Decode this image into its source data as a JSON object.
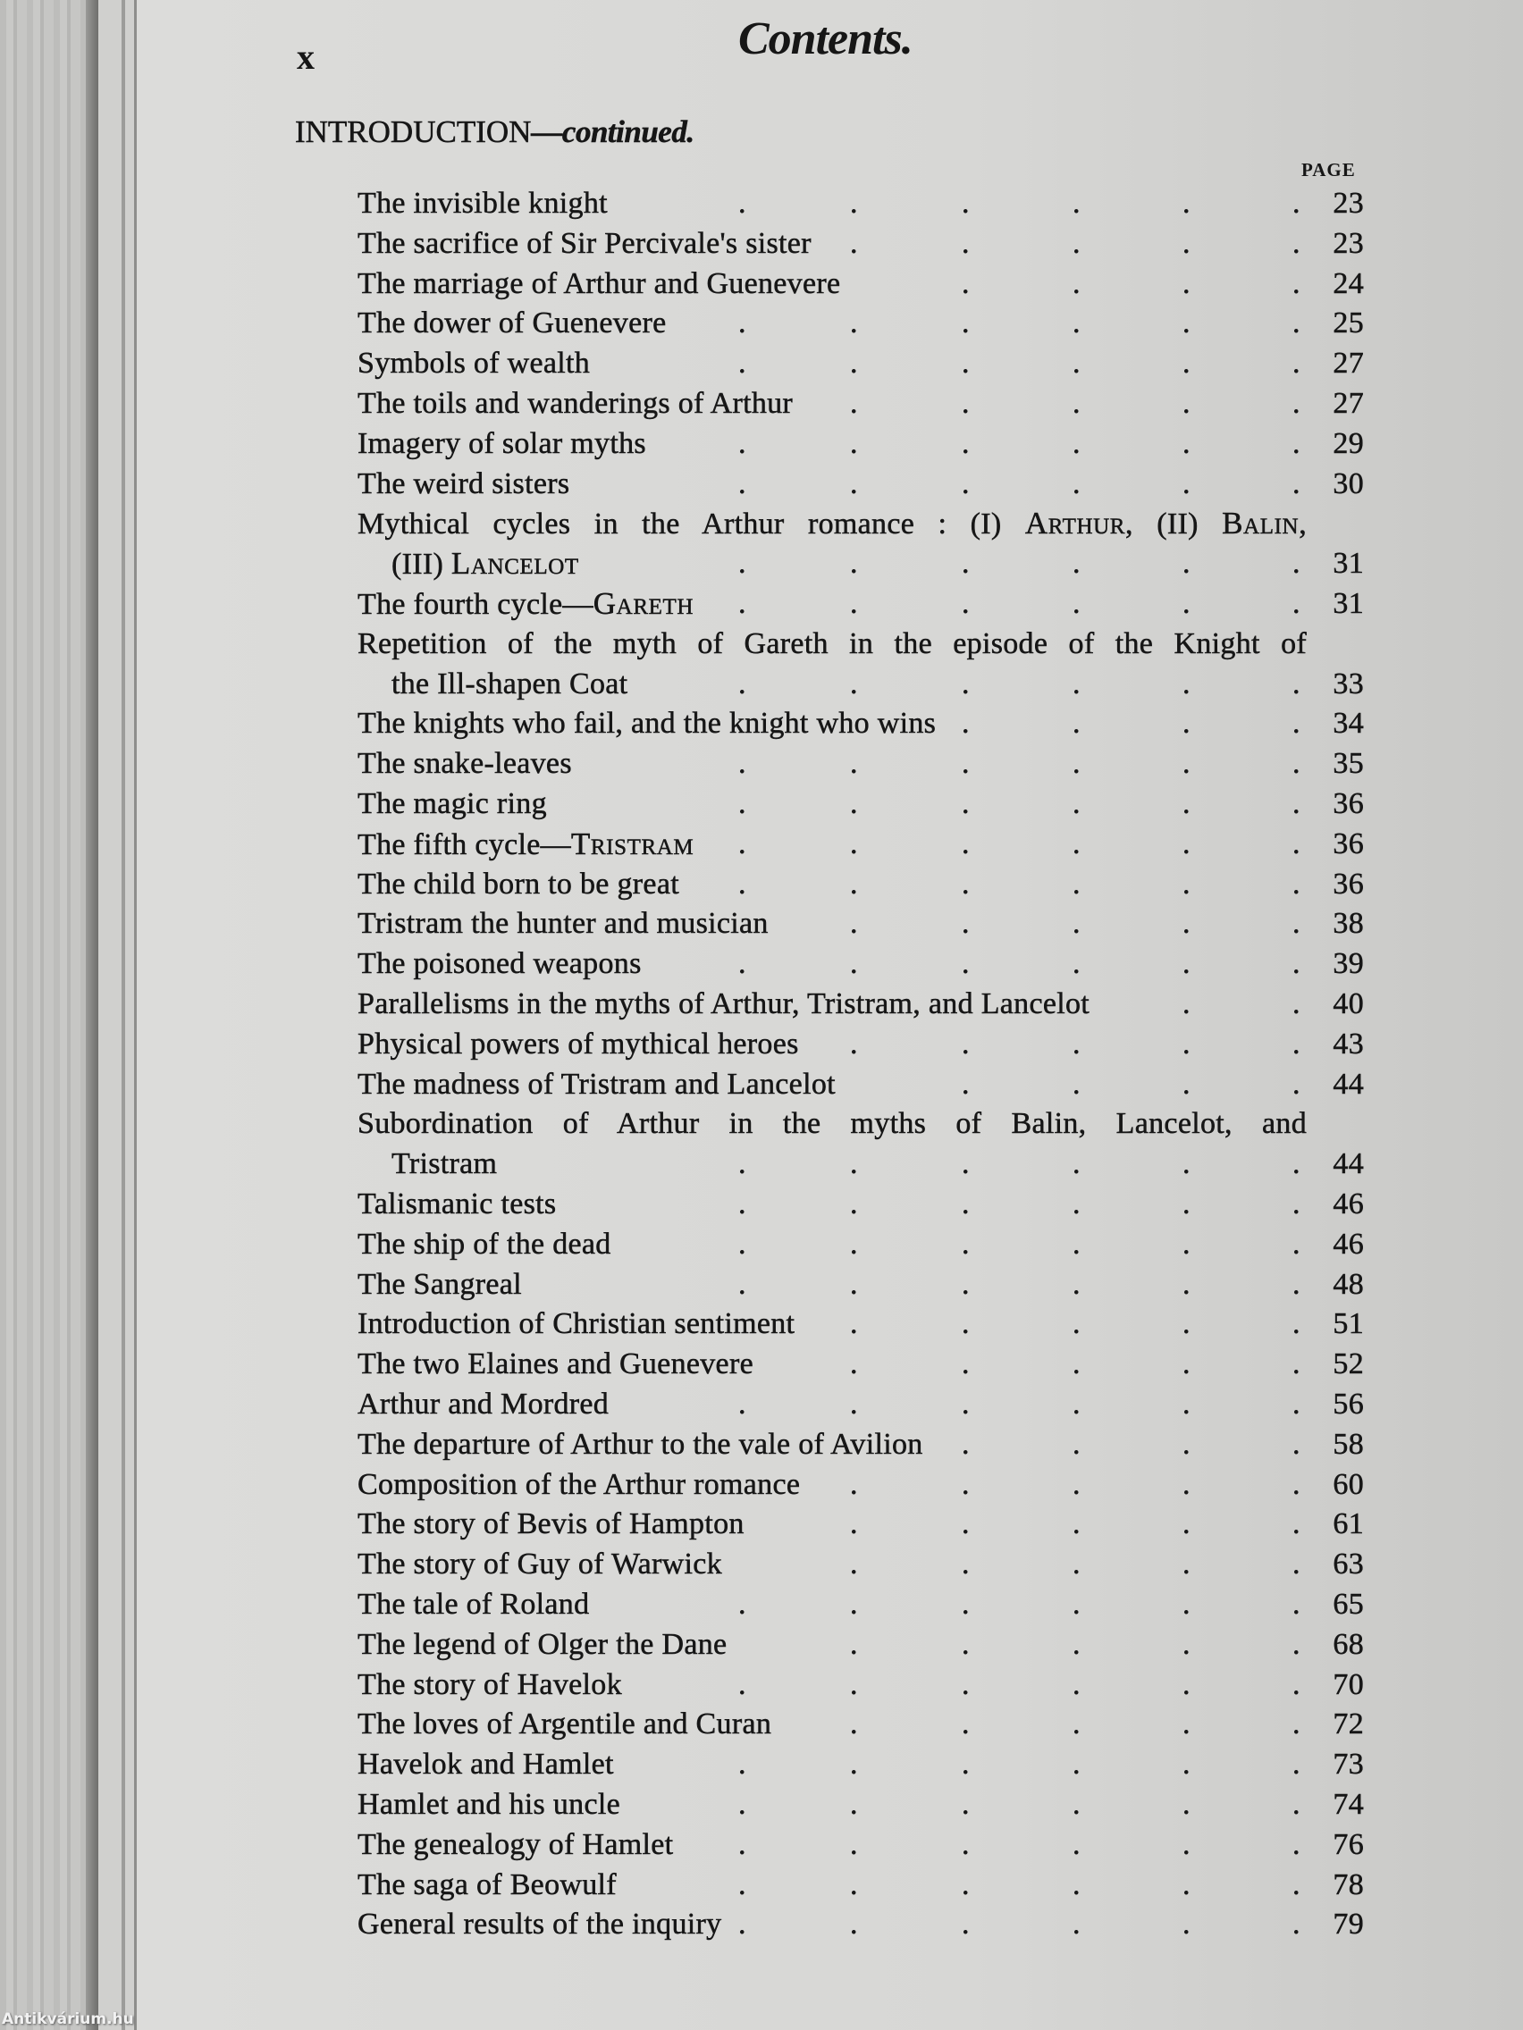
{
  "running_head": {
    "folio": "x",
    "title": "Contents."
  },
  "section": {
    "label": "INTRODUCTION",
    "continued": "—continued."
  },
  "page_column_label": "PAGE",
  "watermark": "Antikvárium.hu",
  "rows": [
    {
      "segs": [
        {
          "t": "The invisible knight"
        }
      ],
      "page": "23"
    },
    {
      "segs": [
        {
          "t": "The sacrifice of Sir Percivale's sister"
        }
      ],
      "page": "23"
    },
    {
      "segs": [
        {
          "t": "The marriage of Arthur and Guenevere"
        }
      ],
      "page": "24"
    },
    {
      "segs": [
        {
          "t": "The dower of Guenevere"
        }
      ],
      "page": "25"
    },
    {
      "segs": [
        {
          "t": "Symbols of wealth"
        }
      ],
      "page": "27"
    },
    {
      "segs": [
        {
          "t": "The toils and wanderings of Arthur"
        }
      ],
      "page": "27"
    },
    {
      "segs": [
        {
          "t": "Imagery of solar myths"
        }
      ],
      "page": "29"
    },
    {
      "segs": [
        {
          "t": "The weird sisters"
        }
      ],
      "page": "30"
    },
    {
      "segs": [
        {
          "t": "Mythical cycles in the Arthur romance : (I) "
        },
        {
          "t": "Arthur",
          "sc": true
        },
        {
          "t": ", (II) "
        },
        {
          "t": "Balin",
          "sc": true
        },
        {
          "t": ","
        }
      ],
      "page": "",
      "justify": true
    },
    {
      "segs": [
        {
          "t": "(III) "
        },
        {
          "t": "Lancelot",
          "sc": true
        }
      ],
      "page": "31",
      "indent": true
    },
    {
      "segs": [
        {
          "t": "The fourth cycle—"
        },
        {
          "t": "Gareth",
          "sc": true
        }
      ],
      "page": "31"
    },
    {
      "segs": [
        {
          "t": "Repetition of the myth of Gareth in the episode of the Knight of"
        }
      ],
      "page": "",
      "justify": true
    },
    {
      "segs": [
        {
          "t": "the Ill-shapen Coat"
        }
      ],
      "page": "33",
      "indent": true
    },
    {
      "segs": [
        {
          "t": "The knights who fail, and the knight who wins"
        }
      ],
      "page": "34"
    },
    {
      "segs": [
        {
          "t": "The snake-leaves"
        }
      ],
      "page": "35"
    },
    {
      "segs": [
        {
          "t": "The magic ring"
        }
      ],
      "page": "36"
    },
    {
      "segs": [
        {
          "t": "The fifth cycle—"
        },
        {
          "t": "Tristram",
          "sc": true
        }
      ],
      "page": "36"
    },
    {
      "segs": [
        {
          "t": "The child born to be great"
        }
      ],
      "page": "36"
    },
    {
      "segs": [
        {
          "t": "Tristram the hunter and musician"
        }
      ],
      "page": "38"
    },
    {
      "segs": [
        {
          "t": "The poisoned weapons"
        }
      ],
      "page": "39"
    },
    {
      "segs": [
        {
          "t": "Parallelisms in the myths of Arthur, Tristram, and Lancelot"
        }
      ],
      "page": "40"
    },
    {
      "segs": [
        {
          "t": "Physical powers of mythical heroes"
        }
      ],
      "page": "43"
    },
    {
      "segs": [
        {
          "t": "The madness of Tristram and Lancelot"
        }
      ],
      "page": "44"
    },
    {
      "segs": [
        {
          "t": "Subordination of Arthur in the myths of Balin, Lancelot, and"
        }
      ],
      "page": "",
      "justify": true
    },
    {
      "segs": [
        {
          "t": "Tristram"
        }
      ],
      "page": "44",
      "indent": true
    },
    {
      "segs": [
        {
          "t": "Talismanic tests"
        }
      ],
      "page": "46"
    },
    {
      "segs": [
        {
          "t": "The ship of the dead"
        }
      ],
      "page": "46"
    },
    {
      "segs": [
        {
          "t": "The Sangreal"
        }
      ],
      "page": "48"
    },
    {
      "segs": [
        {
          "t": "Introduction of Christian sentiment"
        }
      ],
      "page": "51"
    },
    {
      "segs": [
        {
          "t": "The two Elaines and Guenevere"
        }
      ],
      "page": "52"
    },
    {
      "segs": [
        {
          "t": "Arthur and Mordred"
        }
      ],
      "page": "56"
    },
    {
      "segs": [
        {
          "t": "The departure of Arthur to the vale of Avilion"
        }
      ],
      "page": "58"
    },
    {
      "segs": [
        {
          "t": "Composition of the Arthur romance"
        }
      ],
      "page": "60"
    },
    {
      "segs": [
        {
          "t": "The story of Bevis of Hampton"
        }
      ],
      "page": "61"
    },
    {
      "segs": [
        {
          "t": "The story of Guy of Warwick"
        }
      ],
      "page": "63"
    },
    {
      "segs": [
        {
          "t": "The tale of Roland"
        }
      ],
      "page": "65"
    },
    {
      "segs": [
        {
          "t": "The legend of Olger the Dane"
        }
      ],
      "page": "68"
    },
    {
      "segs": [
        {
          "t": "The story of Havelok"
        }
      ],
      "page": "70"
    },
    {
      "segs": [
        {
          "t": "The loves of Argentile and Curan"
        }
      ],
      "page": "72"
    },
    {
      "segs": [
        {
          "t": "Havelok and Hamlet"
        }
      ],
      "page": "73"
    },
    {
      "segs": [
        {
          "t": "Hamlet and his uncle"
        }
      ],
      "page": "74"
    },
    {
      "segs": [
        {
          "t": "The genealogy of Hamlet"
        }
      ],
      "page": "76"
    },
    {
      "segs": [
        {
          "t": "The saga of Beowulf"
        }
      ],
      "page": "78"
    },
    {
      "segs": [
        {
          "t": "General results of the inquiry"
        }
      ],
      "page": "79"
    }
  ]
}
